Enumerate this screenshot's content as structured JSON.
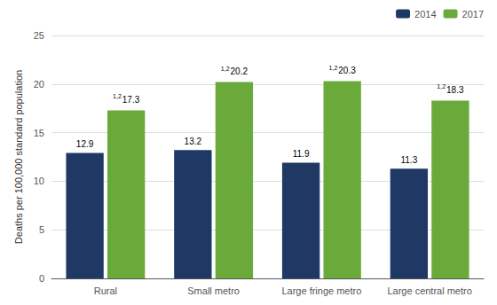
{
  "chart_data": {
    "type": "bar",
    "categories": [
      "Rural",
      "Small metro",
      "Large fringe metro",
      "Large central metro"
    ],
    "series": [
      {
        "name": "2014",
        "color": "#1f3864",
        "values": [
          12.9,
          13.2,
          11.9,
          11.3
        ]
      },
      {
        "name": "2017",
        "color": "#6aaa3a",
        "values": [
          17.3,
          20.2,
          20.3,
          18.3
        ],
        "superscripts": [
          "1,2",
          "1,2",
          "1,2",
          "1,2"
        ]
      }
    ],
    "ylabel": "Deaths per 100,000 standard population",
    "ylim": [
      0,
      25
    ],
    "yticks": [
      0,
      5,
      10,
      15,
      20,
      25
    ],
    "grid": true,
    "legend": "upper right",
    "data_labels": true
  }
}
